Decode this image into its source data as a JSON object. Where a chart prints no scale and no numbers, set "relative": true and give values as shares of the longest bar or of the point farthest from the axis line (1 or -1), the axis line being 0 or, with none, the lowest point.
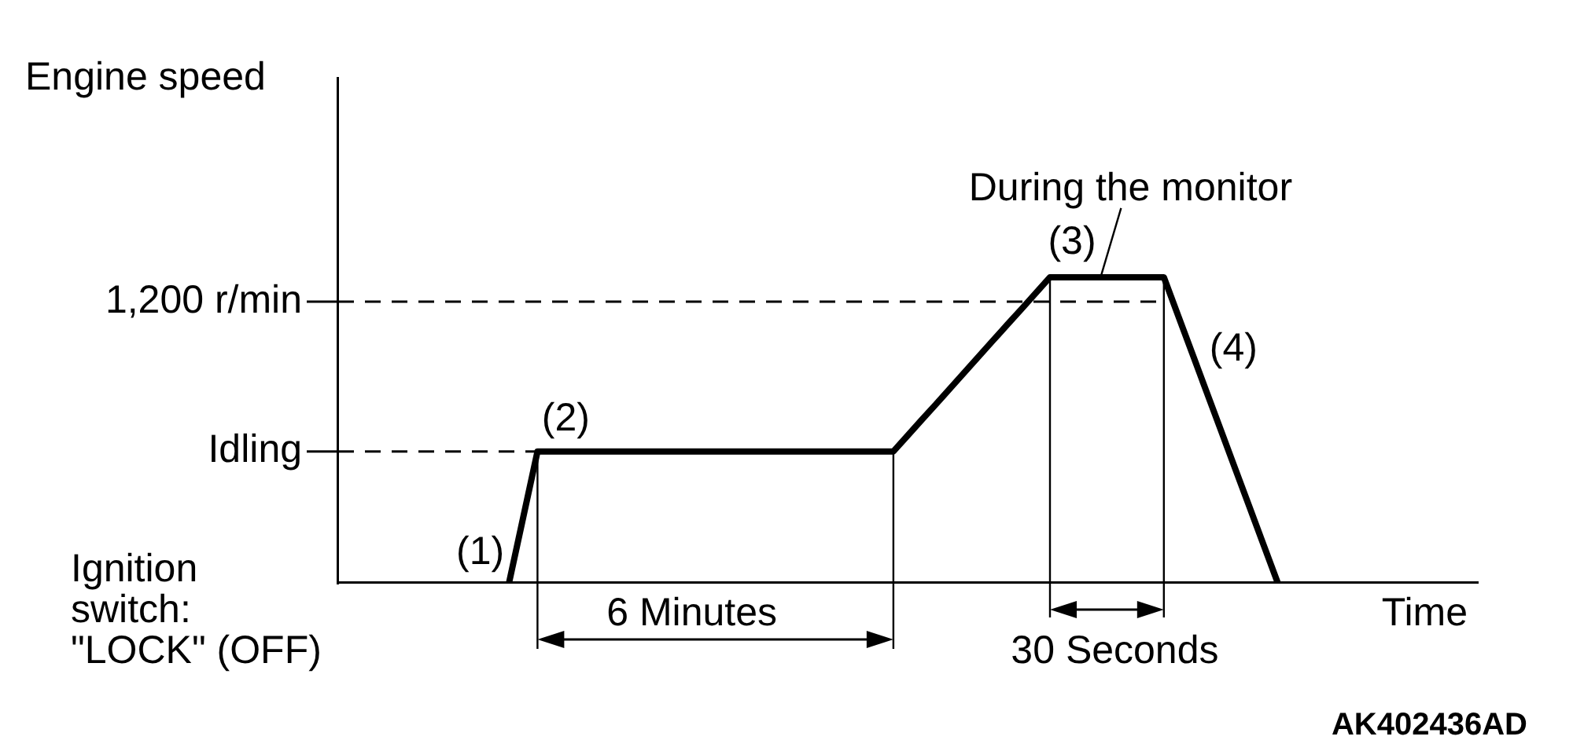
{
  "chart_data": {
    "type": "line",
    "xlabel": "Time",
    "ylabel": "Engine speed",
    "relative": true,
    "marker": "none",
    "categories": [
      null,
      null,
      null,
      null,
      null,
      null,
      null,
      null,
      null,
      null,
      null,
      null,
      null,
      null,
      null,
      null,
      null,
      null,
      null,
      null,
      null,
      null,
      null,
      null,
      null,
      null,
      null,
      null,
      null,
      null,
      null,
      null,
      null,
      null,
      null,
      null,
      null,
      null,
      null,
      null,
      null,
      null,
      null,
      null,
      null,
      null,
      null,
      null,
      null,
      null,
      null,
      null,
      null,
      null,
      null,
      null,
      null,
      null,
      null,
      null,
      null,
      null,
      null,
      null,
      null,
      null,
      null,
      null,
      null,
      null,
      null,
      null,
      null,
      null,
      null,
      null,
      null,
      null,
      null,
      null,
      null
    ],
    "series": [
      {
        "color": "#000000",
        "values": [
          null,
          null,
          null,
          null,
          null,
          null,
          null,
          null,
          null,
          null,
          null,
          null,
          0,
          0.215,
          0.43,
          0.43,
          0.43,
          0.43,
          0.43,
          0.43,
          0.43,
          0.43,
          0.43,
          0.43,
          0.43,
          0.43,
          0.43,
          0.43,
          0.43,
          0.43,
          0.43,
          0.43,
          0.43,
          0.43,
          0.43,
          0.43,
          0.43,
          0.43,
          0.43,
          0.43,
          0.482,
          0.534,
          0.585,
          0.637,
          0.689,
          0.741,
          0.793,
          0.845,
          0.896,
          0.948,
          1,
          1,
          1,
          1,
          1,
          1,
          1,
          1,
          1,
          0.875,
          0.75,
          0.625,
          0.5,
          0.375,
          0.25,
          0.125,
          0,
          null,
          null,
          null,
          null,
          null,
          null,
          null,
          null,
          null,
          null,
          null,
          null,
          null,
          null
        ]
      }
    ],
    "ref_lines": [
      {
        "axis": "y",
        "value": 0.92,
        "label": "1,200 r/min",
        "line_style": "dashed"
      },
      {
        "axis": "y",
        "value": 0.43,
        "label": "Idling",
        "line_style": "dashed"
      }
    ],
    "annotations": [
      "(1)",
      "(2)",
      "(3)",
      "(4)",
      "During the monitor",
      "6 Minutes",
      "30 Seconds",
      "Ignition\nswitch:\n\"LOCK\" (OFF)",
      "AK402436AD"
    ]
  }
}
